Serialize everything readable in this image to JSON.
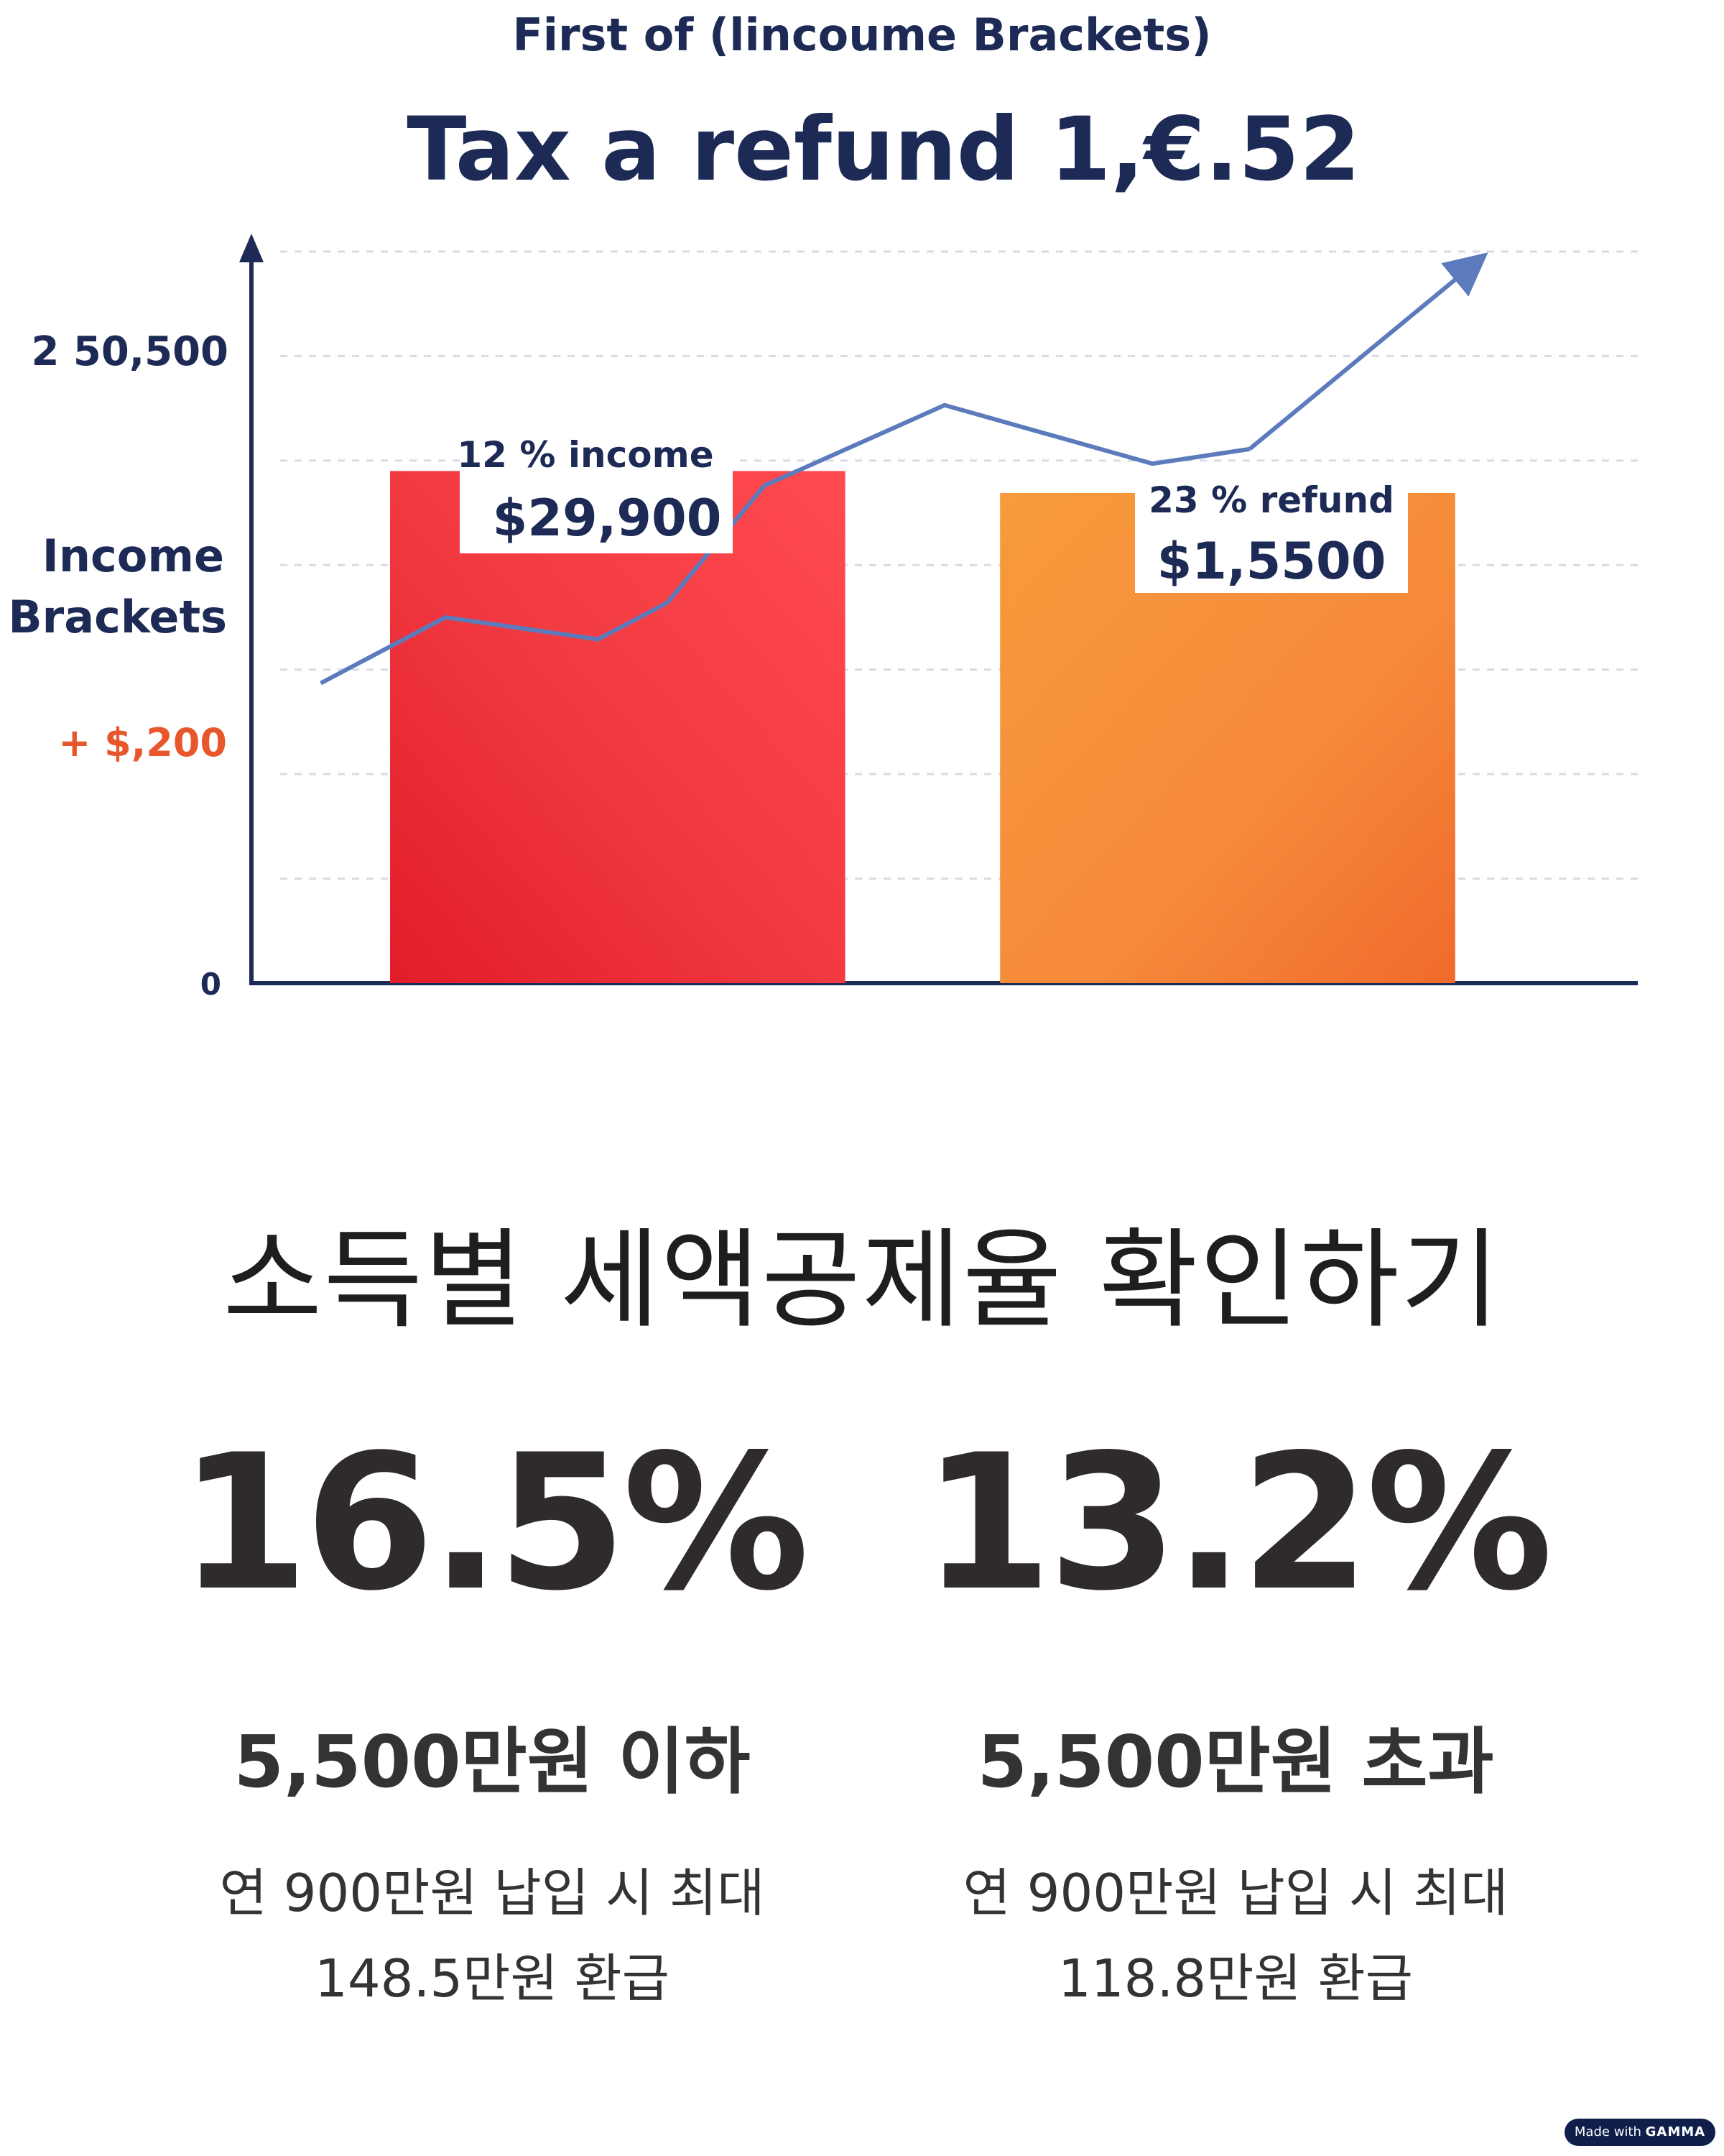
{
  "chart_data": {
    "type": "bar",
    "suptitle": "First of (lincoume Brackets)",
    "title": "Tax a refund 1,€.52",
    "ylabel": [
      "Income",
      "Brackets"
    ],
    "y_tick_labels": [
      "2 50,500",
      "+ $,200",
      "0"
    ],
    "categories": [
      "12 % income",
      "23 % refund"
    ],
    "values": [
      70,
      67
    ],
    "ylim": [
      0,
      100
    ],
    "grid": true,
    "annotations": [
      {
        "label": "12 % income",
        "value": "$29,900"
      },
      {
        "label": "23 % refund",
        "value": "$1,5500"
      }
    ],
    "trend_line": {
      "x": [
        0.05,
        0.14,
        0.25,
        0.3,
        0.37,
        0.5,
        0.65,
        0.72,
        0.88
      ],
      "y": [
        41,
        50,
        47,
        52,
        68,
        79,
        71,
        73,
        98
      ]
    },
    "colors": {
      "bar1": "#f03a3f",
      "bar2": "#f5853a",
      "axis": "#1c2a55",
      "line": "#5c7bbd",
      "accent": "#e8572c"
    }
  },
  "summary": {
    "heading": "소득별 세액공제율 확인하기",
    "left": {
      "rate": "16.5%",
      "threshold": "5,500만원 이하",
      "desc_line1": "연 900만원 납입 시 최대",
      "desc_line2": "148.5만원 환급"
    },
    "right": {
      "rate": "13.2%",
      "threshold": "5,500만원 초과",
      "desc_line1": "연 900만원 납입 시 최대",
      "desc_line2": "118.8만원 환급"
    }
  },
  "badge": {
    "prefix": "Made with",
    "brand": "GAMMA"
  }
}
